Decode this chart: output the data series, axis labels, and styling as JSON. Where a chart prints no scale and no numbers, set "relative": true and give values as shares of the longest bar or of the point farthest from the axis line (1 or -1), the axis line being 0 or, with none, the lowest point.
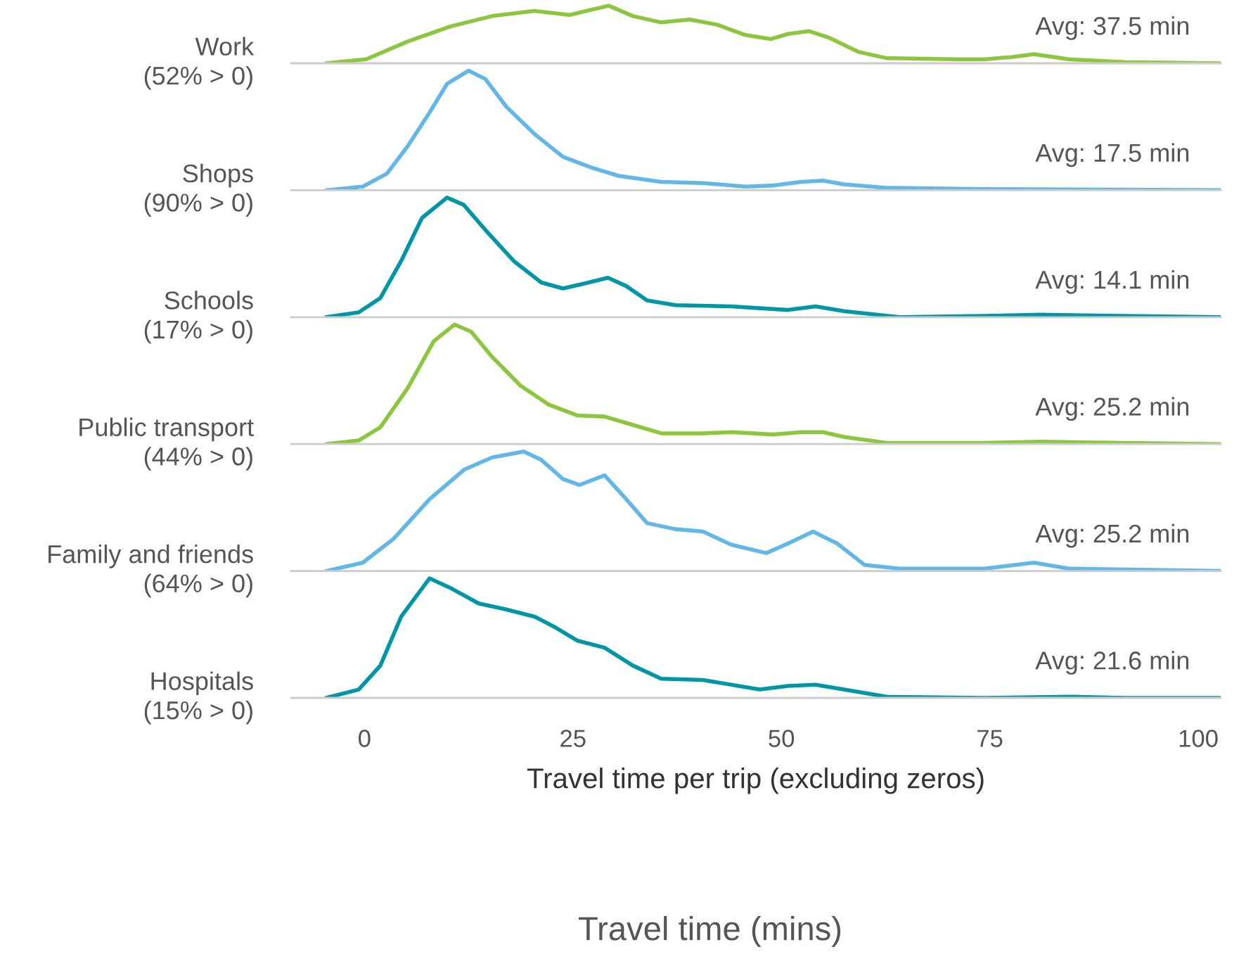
{
  "chart_data": [
    {
      "type": "line",
      "ylabel": "Work\n(52% > 0)",
      "annotations": [
        "Avg: 37.5 min"
      ],
      "relative": true,
      "xlim": [
        -8.8,
        102.7
      ],
      "xticks": [
        0,
        25,
        50,
        75,
        100
      ],
      "tick_labels": false,
      "x": [
        -4.6,
        0.2,
        5.2,
        10.3,
        15.3,
        20.4,
        24.6,
        27.2,
        29.3,
        32.2,
        35.6,
        39.0,
        42.3,
        45.7,
        48.7,
        50.8,
        53.3,
        55.8,
        59.2,
        62.6,
        71.0,
        74.4,
        77.7,
        80.3,
        84.5,
        91.2,
        102.7
      ],
      "series": [
        {
          "color": "#8cc63e",
          "values": [
            0,
            0.07,
            0.38,
            0.64,
            0.82,
            0.91,
            0.84,
            0.93,
            1,
            0.82,
            0.71,
            0.76,
            0.67,
            0.49,
            0.42,
            0.51,
            0.56,
            0.44,
            0.2,
            0.09,
            0.07,
            0.07,
            0.11,
            0.16,
            0.07,
            0.02,
            0
          ]
        }
      ]
    },
    {
      "type": "line",
      "ylabel": "Shops\n(90% > 0)",
      "annotations": [
        "Avg: 17.5 min"
      ],
      "relative": true,
      "xlim": [
        -8.8,
        102.7
      ],
      "xticks": [
        0,
        25,
        50,
        75,
        100
      ],
      "tick_labels": false,
      "x": [
        -4.6,
        -0.2,
        2.7,
        5.2,
        7.8,
        9.9,
        12.5,
        14.5,
        17.0,
        20.4,
        23.8,
        27.2,
        30.5,
        35.6,
        40.6,
        45.7,
        49.1,
        52.4,
        55.0,
        57.5,
        62.6,
        74.4,
        102.7
      ],
      "series": [
        {
          "color": "#63b7e6",
          "values": [
            0,
            0.03,
            0.14,
            0.37,
            0.65,
            0.89,
            1,
            0.93,
            0.7,
            0.47,
            0.28,
            0.19,
            0.12,
            0.07,
            0.06,
            0.03,
            0.04,
            0.07,
            0.08,
            0.05,
            0.02,
            0.01,
            0
          ]
        }
      ]
    },
    {
      "type": "line",
      "ylabel": "Schools\n(17% > 0)",
      "annotations": [
        "Avg: 14.1 min"
      ],
      "relative": true,
      "xlim": [
        -8.8,
        102.7
      ],
      "xticks": [
        0,
        25,
        50,
        75,
        100
      ],
      "tick_labels": false,
      "x": [
        -4.6,
        -0.7,
        1.9,
        4.4,
        6.9,
        9.9,
        11.9,
        14.5,
        17.9,
        21.2,
        23.8,
        26.3,
        29.2,
        31.4,
        33.9,
        37.3,
        44.0,
        50.8,
        54.1,
        57.5,
        64.2,
        74.4,
        81.1,
        91.2,
        102.7
      ],
      "series": [
        {
          "color": "#0096a6",
          "values": [
            0,
            0.04,
            0.16,
            0.47,
            0.83,
            1,
            0.94,
            0.73,
            0.47,
            0.29,
            0.24,
            0.28,
            0.33,
            0.26,
            0.14,
            0.1,
            0.09,
            0.06,
            0.09,
            0.05,
            0,
            0.01,
            0.02,
            0.01,
            0
          ]
        }
      ]
    },
    {
      "type": "line",
      "ylabel": "Public transport\n(44% > 0)",
      "annotations": [
        "Avg: 25.2 min"
      ],
      "relative": true,
      "xlim": [
        -8.8,
        102.7
      ],
      "xticks": [
        0,
        25,
        50,
        75,
        100
      ],
      "tick_labels": false,
      "x": [
        -4.6,
        -0.7,
        1.9,
        5.2,
        8.3,
        10.8,
        12.8,
        15.3,
        18.7,
        22.1,
        25.5,
        28.8,
        32.2,
        35.6,
        40.6,
        44.0,
        49.1,
        52.4,
        55.0,
        57.5,
        62.6,
        74.4,
        81.1,
        91.2,
        102.7
      ],
      "series": [
        {
          "color": "#8cc63e",
          "values": [
            0,
            0.03,
            0.14,
            0.47,
            0.86,
            1,
            0.94,
            0.73,
            0.49,
            0.33,
            0.24,
            0.23,
            0.16,
            0.09,
            0.09,
            0.1,
            0.08,
            0.1,
            0.1,
            0.06,
            0.01,
            0.01,
            0.02,
            0.01,
            0
          ]
        }
      ]
    },
    {
      "type": "line",
      "ylabel": "Family and friends\n(64% > 0)",
      "annotations": [
        "Avg: 25.2 min"
      ],
      "relative": true,
      "xlim": [
        -8.8,
        102.7
      ],
      "xticks": [
        0,
        25,
        50,
        75,
        100
      ],
      "tick_labels": false,
      "x": [
        -4.6,
        -0.2,
        3.5,
        7.8,
        12.0,
        15.3,
        19.1,
        21.2,
        23.8,
        25.8,
        28.8,
        31.4,
        33.9,
        37.3,
        40.6,
        44.0,
        48.2,
        50.8,
        53.8,
        56.7,
        60.0,
        64.2,
        74.4,
        80.3,
        84.5,
        102.7
      ],
      "series": [
        {
          "color": "#63b7e6",
          "values": [
            0,
            0.07,
            0.27,
            0.6,
            0.85,
            0.95,
            1,
            0.93,
            0.77,
            0.72,
            0.8,
            0.6,
            0.4,
            0.35,
            0.33,
            0.22,
            0.15,
            0.23,
            0.33,
            0.23,
            0.05,
            0.02,
            0.02,
            0.07,
            0.02,
            0
          ]
        }
      ]
    },
    {
      "type": "line",
      "ylabel": "Hospitals\n(15% > 0)",
      "xlabel": "Travel time per trip (excluding zeros)",
      "annotations": [
        "Avg: 21.6 min",
        "Travel time (mins)"
      ],
      "relative": true,
      "xlim": [
        -8.8,
        102.7
      ],
      "xticks": [
        0,
        25,
        50,
        75,
        100
      ],
      "tick_labels": "x",
      "x": [
        -4.6,
        -0.7,
        1.9,
        4.4,
        7.8,
        10.3,
        13.7,
        17.0,
        20.4,
        22.9,
        25.5,
        28.8,
        32.2,
        35.6,
        40.6,
        47.4,
        50.8,
        54.1,
        57.5,
        62.6,
        74.4,
        84.5,
        91.2,
        102.7
      ],
      "series": [
        {
          "color": "#0096a6",
          "values": [
            0,
            0.07,
            0.27,
            0.68,
            1,
            0.92,
            0.79,
            0.74,
            0.68,
            0.59,
            0.48,
            0.42,
            0.27,
            0.16,
            0.15,
            0.07,
            0.1,
            0.11,
            0.07,
            0.01,
            0,
            0.01,
            0,
            0
          ]
        }
      ]
    }
  ]
}
